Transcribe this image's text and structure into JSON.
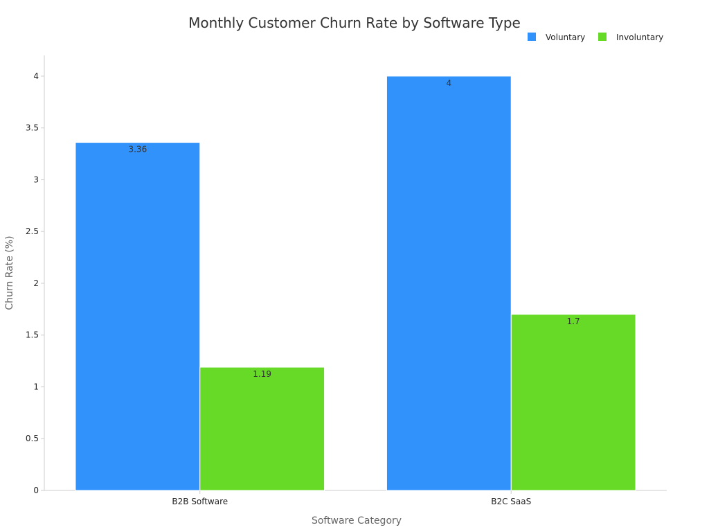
{
  "chart_data": {
    "type": "bar",
    "title": "Monthly Customer Churn Rate by Software Type",
    "xlabel": "Software Category",
    "ylabel": "Churn Rate (%)",
    "categories": [
      "B2B Software",
      "B2C SaaS"
    ],
    "series": [
      {
        "name": "Voluntary",
        "values": [
          3.36,
          4
        ],
        "color": "#3092fa"
      },
      {
        "name": "Involuntary",
        "values": [
          1.19,
          1.7
        ],
        "color": "#66da26"
      }
    ],
    "ylim": [
      0,
      4.2
    ],
    "yticks": [
      0,
      0.5,
      1,
      1.5,
      2,
      2.5,
      3,
      3.5,
      4
    ],
    "ytick_labels": [
      "0",
      "0.5",
      "1",
      "1.5",
      "2",
      "2.5",
      "3",
      "3.5",
      "4"
    ],
    "legend_position": "top-right",
    "grid": false
  }
}
